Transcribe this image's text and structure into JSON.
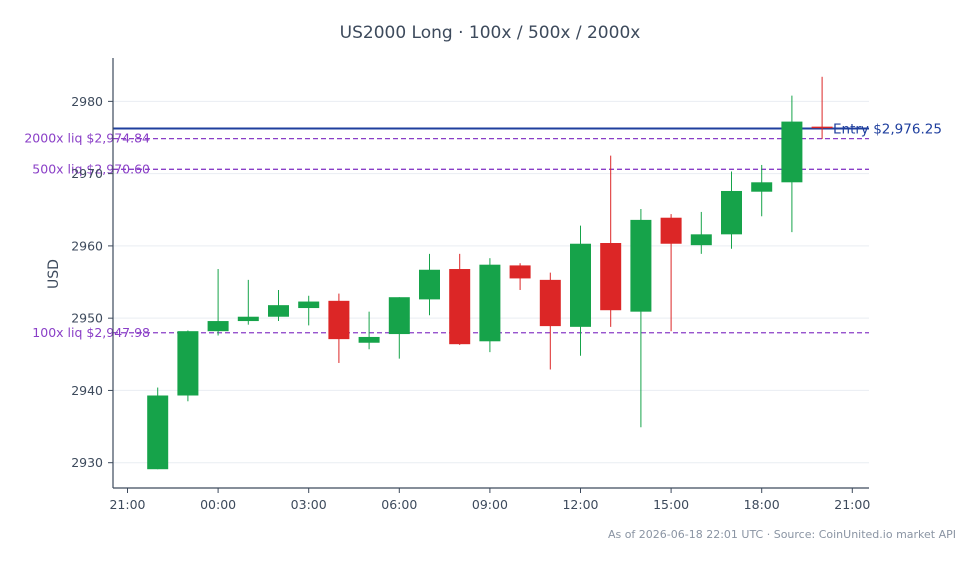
{
  "chart_data": {
    "type": "candlestick",
    "title": "US2000 Long · 100x / 500x / 2000x",
    "ylabel": "USD",
    "xlabel": "",
    "ylim": [
      2926.5,
      2986.0
    ],
    "grid": true,
    "x_ticks": [
      "21:00",
      "00:00",
      "03:00",
      "06:00",
      "09:00",
      "12:00",
      "15:00",
      "18:00",
      "21:00"
    ],
    "x_tick_hours": [
      0,
      3,
      6,
      9,
      12,
      15,
      18,
      21,
      24
    ],
    "y_ticks": [
      2930,
      2940,
      2950,
      2960,
      2970,
      2980
    ],
    "candles": [
      {
        "t": 1,
        "open": 2929.1,
        "high": 2940.4,
        "low": 2929.1,
        "close": 2939.3
      },
      {
        "t": 2,
        "open": 2939.3,
        "high": 2948.3,
        "low": 2938.5,
        "close": 2948.2
      },
      {
        "t": 3,
        "open": 2948.2,
        "high": 2956.8,
        "low": 2947.6,
        "close": 2949.6
      },
      {
        "t": 4,
        "open": 2949.6,
        "high": 2955.3,
        "low": 2949.1,
        "close": 2950.2
      },
      {
        "t": 5,
        "open": 2950.2,
        "high": 2953.9,
        "low": 2949.6,
        "close": 2951.8
      },
      {
        "t": 6,
        "open": 2951.4,
        "high": 2953.1,
        "low": 2949.0,
        "close": 2952.3
      },
      {
        "t": 7,
        "open": 2952.4,
        "high": 2953.4,
        "low": 2943.8,
        "close": 2947.1
      },
      {
        "t": 8,
        "open": 2946.6,
        "high": 2950.9,
        "low": 2945.7,
        "close": 2947.4
      },
      {
        "t": 9,
        "open": 2947.8,
        "high": 2952.9,
        "low": 2944.4,
        "close": 2952.9
      },
      {
        "t": 10,
        "open": 2952.6,
        "high": 2958.9,
        "low": 2950.4,
        "close": 2956.7
      },
      {
        "t": 11,
        "open": 2956.8,
        "high": 2958.9,
        "low": 2946.3,
        "close": 2946.4
      },
      {
        "t": 12,
        "open": 2946.8,
        "high": 2958.3,
        "low": 2945.3,
        "close": 2957.4
      },
      {
        "t": 13,
        "open": 2957.3,
        "high": 2957.6,
        "low": 2953.9,
        "close": 2955.5
      },
      {
        "t": 14,
        "open": 2955.3,
        "high": 2956.3,
        "low": 2942.9,
        "close": 2948.9
      },
      {
        "t": 15,
        "open": 2948.8,
        "high": 2962.8,
        "low": 2944.8,
        "close": 2960.3
      },
      {
        "t": 16,
        "open": 2960.4,
        "high": 2972.5,
        "low": 2948.8,
        "close": 2951.1
      },
      {
        "t": 17,
        "open": 2950.9,
        "high": 2965.1,
        "low": 2934.9,
        "close": 2963.6
      },
      {
        "t": 18,
        "open": 2963.9,
        "high": 2964.4,
        "low": 2948.2,
        "close": 2960.3
      },
      {
        "t": 19,
        "open": 2960.1,
        "high": 2964.7,
        "low": 2958.9,
        "close": 2961.6
      },
      {
        "t": 20,
        "open": 2961.6,
        "high": 2970.3,
        "low": 2959.6,
        "close": 2967.6
      },
      {
        "t": 21,
        "open": 2967.5,
        "high": 2971.2,
        "low": 2964.1,
        "close": 2968.8
      },
      {
        "t": 22,
        "open": 2968.8,
        "high": 2980.8,
        "low": 2961.9,
        "close": 2977.2
      },
      {
        "t": 23,
        "open": 2976.5,
        "high": 2983.4,
        "low": 2974.8,
        "close": 2976.3
      }
    ],
    "reference_lines": [
      {
        "name": "Entry",
        "label": "Entry $2,976.25",
        "value": 2976.25,
        "style": "solid",
        "color": "#1f3f9e"
      },
      {
        "name": "2000x liq",
        "label": "2000x liq $2,974.84",
        "value": 2974.84,
        "style": "dashed",
        "color": "#8a3fc7"
      },
      {
        "name": "500x liq",
        "label": "500x liq $2,970.60",
        "value": 2970.6,
        "style": "dashed",
        "color": "#8a3fc7"
      },
      {
        "name": "100x liq",
        "label": "100x liq $2,947.98",
        "value": 2947.98,
        "style": "dashed",
        "color": "#8a3fc7"
      }
    ],
    "colors": {
      "up": "#16a34a",
      "down": "#dc2626",
      "axis": "#3d4a5c",
      "grid": "#e9edf2"
    },
    "footer": "As of 2026-06-18 22:01 UTC · Source: CoinUnited.io market API"
  }
}
